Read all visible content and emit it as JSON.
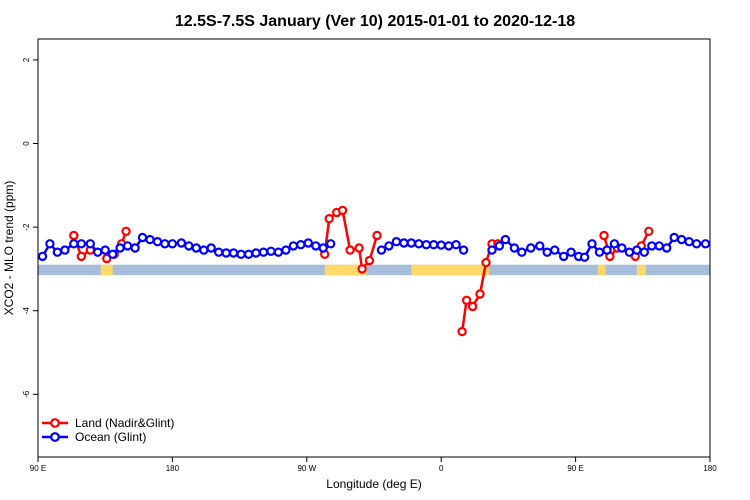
{
  "chart_data": {
    "type": "line",
    "title": "12.5S-7.5S January (Ver 10)   2015-01-01 to 2020-12-18",
    "xlabel": "Longitude (deg E)",
    "ylabel": "XCO2 - MLO trend (ppm)",
    "x_ticks": [
      {
        "value": 90,
        "label": "90 E"
      },
      {
        "value": 180,
        "label": "180"
      },
      {
        "value": 270,
        "label": "90 W"
      },
      {
        "value": 360,
        "label": "0"
      },
      {
        "value": 450,
        "label": "90 E"
      },
      {
        "value": 540,
        "label": "180"
      }
    ],
    "y_ticks": [
      2,
      0,
      -2,
      -4,
      -6
    ],
    "xlim": [
      90,
      540
    ],
    "ylim": [
      -7.5,
      2.5
    ],
    "land_strip": {
      "y_range": [
        -3.15,
        -2.9
      ],
      "ocean_color": "#a6bddb",
      "land_color": "#ffd966",
      "land_segments": [
        [
          282,
          310
        ],
        [
          340,
          392
        ],
        [
          132,
          140
        ],
        [
          465,
          470
        ],
        [
          491,
          497
        ]
      ]
    },
    "series": [
      {
        "name": "Land (Nadir&Glint)",
        "color": "#ff0000",
        "segments": [
          [
            [
              114,
              -2.2
            ],
            [
              119,
              -2.7
            ],
            [
              125,
              -2.55
            ]
          ],
          [
            [
              136,
              -2.75
            ],
            [
              141,
              -2.65
            ],
            [
              146,
              -2.4
            ],
            [
              149,
              -2.1
            ]
          ],
          [
            [
              282,
              -2.65
            ],
            [
              285,
              -1.8
            ],
            [
              290,
              -1.65
            ],
            [
              294,
              -1.6
            ],
            [
              299,
              -2.55
            ],
            [
              305,
              -2.5
            ],
            [
              307,
              -3.0
            ],
            [
              312,
              -2.8
            ],
            [
              317,
              -2.2
            ]
          ],
          [
            [
              374,
              -4.5
            ],
            [
              377,
              -3.75
            ],
            [
              381,
              -3.9
            ],
            [
              386,
              -3.6
            ],
            [
              390,
              -2.85
            ],
            [
              394,
              -2.4
            ],
            [
              398,
              -2.4
            ]
          ],
          [
            [
              469,
              -2.2
            ],
            [
              473,
              -2.7
            ],
            [
              478,
              -2.5
            ]
          ],
          [
            [
              490,
              -2.7
            ],
            [
              494,
              -2.45
            ],
            [
              499,
              -2.1
            ]
          ]
        ]
      },
      {
        "name": "Ocean (Glint)",
        "color": "#0000ff",
        "segments": [
          [
            [
              93,
              -2.7
            ],
            [
              98,
              -2.4
            ],
            [
              103,
              -2.6
            ],
            [
              108,
              -2.55
            ],
            [
              114,
              -2.4
            ],
            [
              119,
              -2.4
            ],
            [
              125,
              -2.4
            ],
            [
              130,
              -2.6
            ],
            [
              135,
              -2.55
            ],
            [
              140,
              -2.65
            ],
            [
              145,
              -2.5
            ],
            [
              150,
              -2.45
            ],
            [
              155,
              -2.5
            ],
            [
              160,
              -2.25
            ],
            [
              165,
              -2.3
            ],
            [
              170,
              -2.35
            ],
            [
              175,
              -2.4
            ],
            [
              180,
              -2.4
            ],
            [
              186,
              -2.38
            ],
            [
              191,
              -2.45
            ],
            [
              196,
              -2.5
            ],
            [
              201,
              -2.55
            ],
            [
              206,
              -2.5
            ],
            [
              211,
              -2.6
            ],
            [
              216,
              -2.62
            ],
            [
              221,
              -2.62
            ],
            [
              226,
              -2.65
            ],
            [
              231,
              -2.65
            ],
            [
              236,
              -2.62
            ],
            [
              241,
              -2.6
            ],
            [
              246,
              -2.58
            ],
            [
              251,
              -2.6
            ],
            [
              256,
              -2.55
            ],
            [
              261,
              -2.45
            ],
            [
              266,
              -2.42
            ],
            [
              271,
              -2.38
            ],
            [
              276,
              -2.45
            ],
            [
              281,
              -2.5
            ],
            [
              286,
              -2.4
            ]
          ],
          [
            [
              320,
              -2.55
            ],
            [
              325,
              -2.45
            ],
            [
              330,
              -2.35
            ],
            [
              335,
              -2.38
            ],
            [
              340,
              -2.38
            ],
            [
              345,
              -2.4
            ],
            [
              350,
              -2.42
            ],
            [
              355,
              -2.42
            ],
            [
              360,
              -2.43
            ],
            [
              365,
              -2.45
            ],
            [
              370,
              -2.42
            ],
            [
              375,
              -2.55
            ]
          ],
          [
            [
              394,
              -2.55
            ],
            [
              399,
              -2.45
            ],
            [
              403,
              -2.3
            ],
            [
              409,
              -2.5
            ],
            [
              414,
              -2.6
            ],
            [
              420,
              -2.5
            ],
            [
              426,
              -2.45
            ],
            [
              431,
              -2.6
            ],
            [
              436,
              -2.55
            ],
            [
              442,
              -2.7
            ],
            [
              447,
              -2.6
            ],
            [
              452,
              -2.7
            ],
            [
              456,
              -2.72
            ],
            [
              461,
              -2.4
            ],
            [
              466,
              -2.6
            ],
            [
              471,
              -2.55
            ],
            [
              476,
              -2.4
            ],
            [
              481,
              -2.5
            ],
            [
              486,
              -2.6
            ],
            [
              491,
              -2.55
            ],
            [
              496,
              -2.6
            ],
            [
              501,
              -2.45
            ],
            [
              506,
              -2.45
            ],
            [
              511,
              -2.5
            ],
            [
              516,
              -2.25
            ],
            [
              521,
              -2.3
            ],
            [
              526,
              -2.35
            ],
            [
              531,
              -2.4
            ],
            [
              537,
              -2.4
            ]
          ]
        ]
      }
    ]
  }
}
